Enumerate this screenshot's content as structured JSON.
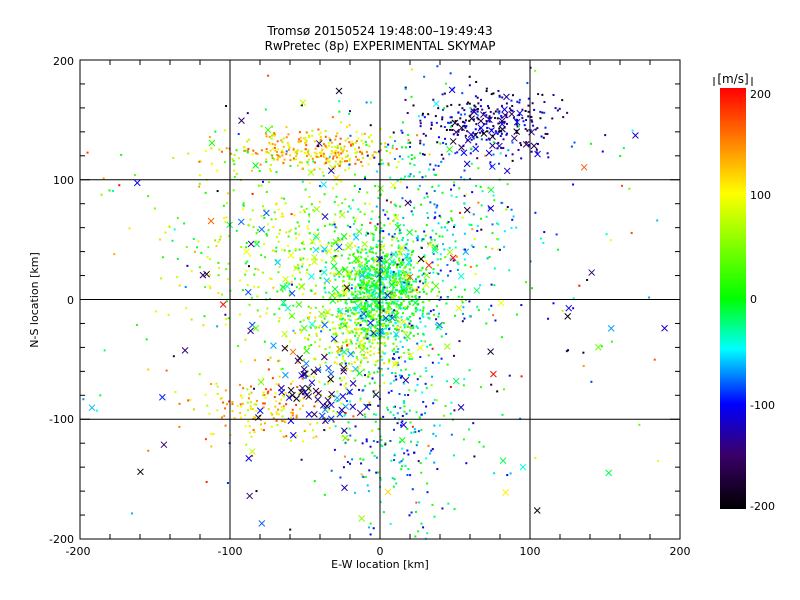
{
  "chart_data": {
    "type": "scatter",
    "title": "Tromsø 20150524 19:48:00–19:49:43",
    "subtitle": "RwPretec (8p) EXPERIMENTAL SKYMAP",
    "xlabel": "E-W location [km]",
    "ylabel": "N-S location [km]",
    "xlim": [
      -200,
      200
    ],
    "ylim": [
      -200,
      200
    ],
    "xticks": [
      "-200",
      "-100",
      "0",
      "100",
      "200"
    ],
    "yticks": [
      "-200",
      "-100",
      "0",
      "100",
      "200"
    ],
    "grid": true,
    "colorbar": {
      "label": "[m/s]",
      "range": [
        -200,
        200
      ],
      "ticks": [
        "200",
        "100",
        "0",
        "-100",
        "-200"
      ]
    },
    "series": [
      {
        "name": "",
        "marker": "dot",
        "clusters": [
          {
            "cx": 0,
            "cy": 5,
            "sx": 14,
            "sy": 22,
            "n": 900,
            "vmin": -60,
            "vmax": 60
          },
          {
            "cx": -45,
            "cy": 125,
            "sx": 30,
            "sy": 9,
            "n": 300,
            "vmin": 60,
            "vmax": 170
          },
          {
            "cx": 70,
            "cy": 148,
            "sx": 25,
            "sy": 14,
            "n": 260,
            "vmin": -200,
            "vmax": -80
          },
          {
            "cx": -60,
            "cy": 40,
            "sx": 40,
            "sy": 40,
            "n": 380,
            "vmin": -20,
            "vmax": 120
          },
          {
            "cx": -70,
            "cy": -90,
            "sx": 25,
            "sy": 15,
            "n": 180,
            "vmin": 60,
            "vmax": 180
          },
          {
            "cx": 10,
            "cy": -100,
            "sx": 20,
            "sy": 45,
            "n": 280,
            "vmin": -140,
            "vmax": 20
          },
          {
            "cx": 35,
            "cy": 60,
            "sx": 30,
            "sy": 50,
            "n": 350,
            "vmin": -120,
            "vmax": 20
          },
          {
            "cx": -20,
            "cy": -30,
            "sx": 20,
            "sy": 20,
            "n": 250,
            "vmin": 40,
            "vmax": 120
          },
          {
            "cx": 0,
            "cy": 0,
            "sx": 110,
            "sy": 110,
            "n": 300,
            "vmin": -200,
            "vmax": 200
          }
        ]
      },
      {
        "name": "",
        "marker": "x",
        "clusters": [
          {
            "cx": -20,
            "cy": 20,
            "sx": 30,
            "sy": 40,
            "n": 140,
            "vmin": -100,
            "vmax": 100
          },
          {
            "cx": -40,
            "cy": -75,
            "sx": 20,
            "sy": 15,
            "n": 60,
            "vmin": -200,
            "vmax": -60
          },
          {
            "cx": 75,
            "cy": 140,
            "sx": 20,
            "sy": 15,
            "n": 40,
            "vmin": -200,
            "vmax": -100
          },
          {
            "cx": 0,
            "cy": 0,
            "sx": 120,
            "sy": 120,
            "n": 90,
            "vmin": -200,
            "vmax": 200
          }
        ]
      }
    ]
  }
}
